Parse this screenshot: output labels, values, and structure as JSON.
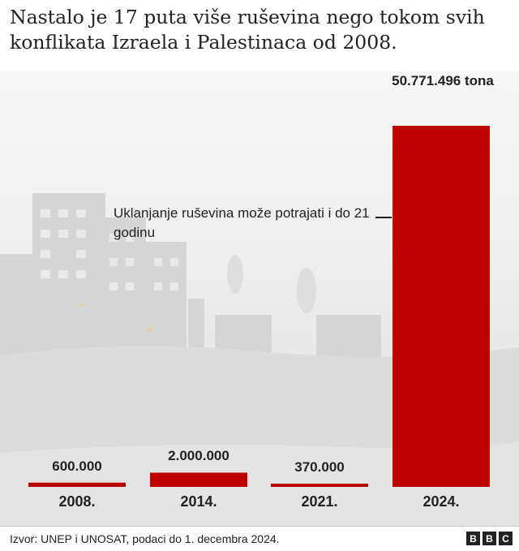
{
  "title": "Nastalo je 17 puta više ruševina nego tokom svih konflikata Izraela i Palestinaca od 2008.",
  "chart_data": {
    "type": "bar",
    "title": "Nastalo je 17 puta više ruševina nego tokom svih konflikata Izraela i Palestinaca od 2008.",
    "categories": [
      "2008.",
      "2014.",
      "2021.",
      "2024."
    ],
    "values": [
      600000,
      2000000,
      370000,
      50771496
    ],
    "value_labels": [
      "600.000",
      "2.000.000",
      "370.000",
      "50.771.496 tona"
    ],
    "xlabel": "",
    "ylabel": "",
    "ylim": [
      0,
      55000000
    ],
    "bar_color": "#bb0000",
    "annotation": {
      "text": "Uklanjanje ruševina može potrajati i do 21 godinu",
      "target": "2024."
    }
  },
  "footer": {
    "source": "Izvor: UNEP i UNOSAT, podaci do 1. decembra 2024.",
    "logo": [
      "B",
      "B",
      "C"
    ]
  }
}
